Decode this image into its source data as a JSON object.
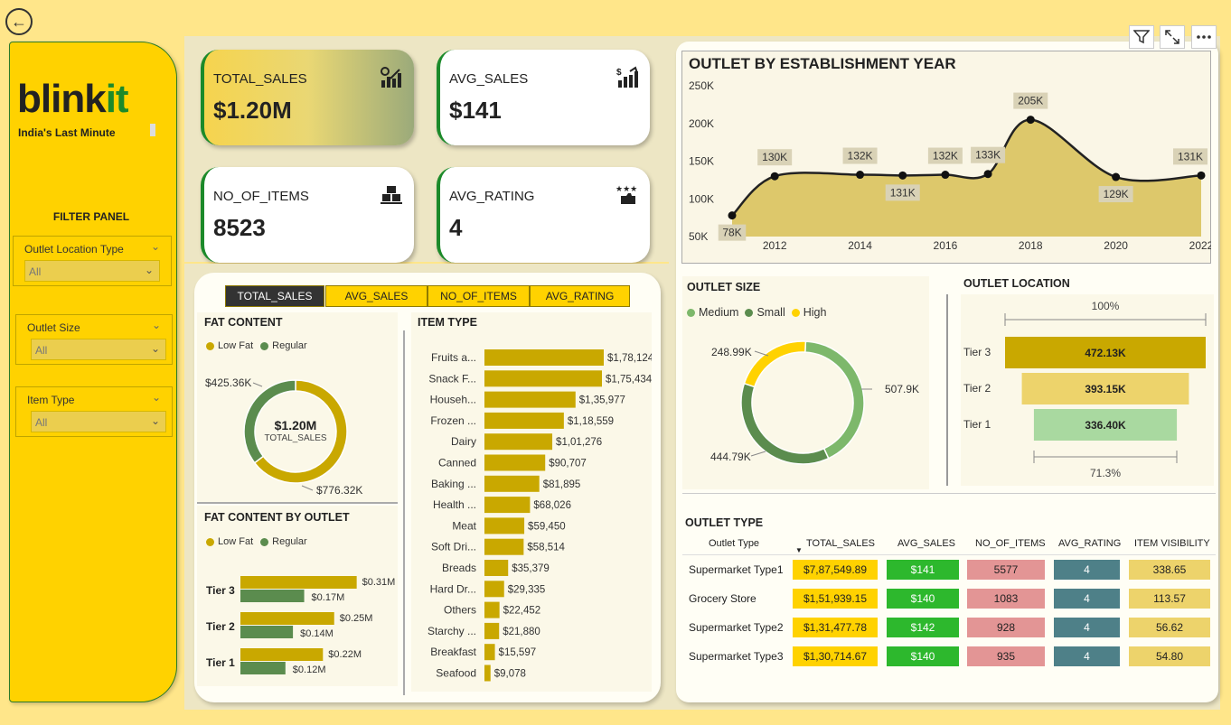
{
  "brand": {
    "logo_main": "blink",
    "logo_accent": "it",
    "tagline": "India's Last Minute"
  },
  "filter_panel": {
    "title": "FILTER PANEL",
    "slicers": [
      {
        "label": "Outlet Location Type",
        "value": "All"
      },
      {
        "label": "Outlet Size",
        "value": "All"
      },
      {
        "label": "Item Type",
        "value": "All"
      }
    ]
  },
  "kpis": [
    {
      "title": "TOTAL_SALES",
      "value": "$1.20M",
      "icon": "bar-chart-icon"
    },
    {
      "title": "AVG_SALES",
      "value": "$141",
      "icon": "growth-chart-icon"
    },
    {
      "title": "NO_OF_ITEMS",
      "value": "8523",
      "icon": "boxes-icon"
    },
    {
      "title": "AVG_RATING",
      "value": "4",
      "icon": "rating-hand-icon"
    }
  ],
  "tabs": [
    "TOTAL_SALES",
    "AVG_SALES",
    "NO_OF_ITEMS",
    "AVG_RATING"
  ],
  "fat_content": {
    "title": "FAT CONTENT",
    "legend": [
      "Low Fat",
      "Regular"
    ],
    "center_value": "$1.20M",
    "center_label": "TOTAL_SALES",
    "label_regular": "$425.36K",
    "label_lowfat": "$776.32K"
  },
  "fat_by_outlet": {
    "title": "FAT CONTENT BY OUTLET",
    "legend": [
      "Low Fat",
      "Regular"
    ],
    "tiers": [
      {
        "name": "Tier 3",
        "low_fat": 0.31,
        "regular": 0.17,
        "low_label": "$0.31M",
        "reg_label": "$0.17M"
      },
      {
        "name": "Tier 2",
        "low_fat": 0.25,
        "regular": 0.14,
        "low_label": "$0.25M",
        "reg_label": "$0.14M"
      },
      {
        "name": "Tier 1",
        "low_fat": 0.22,
        "regular": 0.12,
        "low_label": "$0.22M",
        "reg_label": "$0.12M"
      }
    ]
  },
  "item_type": {
    "title": "ITEM TYPE",
    "items": [
      {
        "name": "Fruits a...",
        "value": 178124,
        "label": "$1,78,124"
      },
      {
        "name": "Snack F...",
        "value": 175434,
        "label": "$1,75,434"
      },
      {
        "name": "Househ...",
        "value": 135977,
        "label": "$1,35,977"
      },
      {
        "name": "Frozen ...",
        "value": 118559,
        "label": "$1,18,559"
      },
      {
        "name": "Dairy",
        "value": 101276,
        "label": "$1,01,276"
      },
      {
        "name": "Canned",
        "value": 90707,
        "label": "$90,707"
      },
      {
        "name": "Baking ...",
        "value": 81895,
        "label": "$81,895"
      },
      {
        "name": "Health ...",
        "value": 68026,
        "label": "$68,026"
      },
      {
        "name": "Meat",
        "value": 59450,
        "label": "$59,450"
      },
      {
        "name": "Soft Dri...",
        "value": 58514,
        "label": "$58,514"
      },
      {
        "name": "Breads",
        "value": 35379,
        "label": "$35,379"
      },
      {
        "name": "Hard Dr...",
        "value": 29335,
        "label": "$29,335"
      },
      {
        "name": "Others",
        "value": 22452,
        "label": "$22,452"
      },
      {
        "name": "Starchy ...",
        "value": 21880,
        "label": "$21,880"
      },
      {
        "name": "Breakfast",
        "value": 15597,
        "label": "$15,597"
      },
      {
        "name": "Seafood",
        "value": 9078,
        "label": "$9,078"
      }
    ]
  },
  "establishment": {
    "title": "OUTLET BY ESTABLISHMENT YEAR",
    "y_ticks": [
      "250K",
      "200K",
      "150K",
      "100K",
      "50K"
    ],
    "x_ticks": [
      "2012",
      "2014",
      "2016",
      "2018",
      "2020",
      "2022"
    ]
  },
  "outlet_size": {
    "title": "OUTLET SIZE",
    "legend": [
      "Medium",
      "Small",
      "High"
    ],
    "label_high": "248.99K",
    "label_medium": "507.9K",
    "label_small": "444.79K"
  },
  "outlet_location": {
    "title": "OUTLET LOCATION",
    "top_pct": "100%",
    "bottom_pct": "71.3%",
    "tiers": [
      {
        "name": "Tier 3",
        "value": 472.13,
        "label": "472.13K"
      },
      {
        "name": "Tier 2",
        "value": 393.15,
        "label": "393.15K"
      },
      {
        "name": "Tier 1",
        "value": 336.4,
        "label": "336.40K"
      }
    ]
  },
  "outlet_type": {
    "title": "OUTLET TYPE",
    "headers": [
      "Outlet Type",
      "TOTAL_SALES",
      "AVG_SALES",
      "NO_OF_ITEMS",
      "AVG_RATING",
      "ITEM VISIBILITY"
    ],
    "rows": [
      [
        "Supermarket Type1",
        "$7,87,549.89",
        "$141",
        "5577",
        "4",
        "338.65"
      ],
      [
        "Grocery Store",
        "$1,51,939.15",
        "$140",
        "1083",
        "4",
        "113.57"
      ],
      [
        "Supermarket Type2",
        "$1,31,477.78",
        "$142",
        "928",
        "4",
        "56.62"
      ],
      [
        "Supermarket Type3",
        "$1,30,714.67",
        "$140",
        "935",
        "4",
        "54.80"
      ]
    ]
  },
  "chart_data": [
    {
      "type": "area",
      "title": "OUTLET BY ESTABLISHMENT YEAR",
      "x": [
        2011,
        2012,
        2014,
        2015,
        2016,
        2017,
        2018,
        2020,
        2022
      ],
      "values": [
        78,
        130,
        132,
        131,
        132,
        133,
        205,
        129,
        131
      ],
      "labels": [
        "78K",
        "130K",
        "132K",
        "131K",
        "132K",
        "133K",
        "205K",
        "129K",
        "131K"
      ],
      "ylim": [
        50,
        250
      ],
      "xlim": [
        2011,
        2022
      ],
      "units": "K"
    },
    {
      "type": "pie",
      "title": "FAT CONTENT",
      "categories": [
        "Low Fat",
        "Regular"
      ],
      "values": [
        776.32,
        425.36
      ]
    },
    {
      "type": "pie",
      "title": "OUTLET SIZE",
      "categories": [
        "Medium",
        "Small",
        "High"
      ],
      "values": [
        507.9,
        444.79,
        248.99
      ]
    },
    {
      "type": "bar",
      "title": "FAT CONTENT BY OUTLET",
      "categories": [
        "Tier 3",
        "Tier 2",
        "Tier 1"
      ],
      "series": [
        {
          "name": "Low Fat",
          "values": [
            0.31,
            0.25,
            0.22
          ]
        },
        {
          "name": "Regular",
          "values": [
            0.17,
            0.14,
            0.12
          ]
        }
      ]
    }
  ],
  "colors": {
    "yellow": "#FFD200",
    "gold": "#C9A800",
    "green": "#5B8C4E",
    "light_green": "#7DB86B",
    "red": "#E39595",
    "teal": "#4E8088",
    "bright_green": "#2DB82D"
  }
}
